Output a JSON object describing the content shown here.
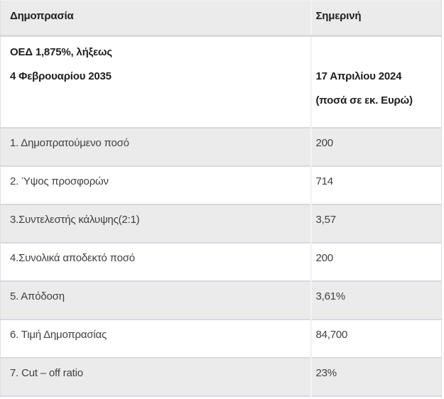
{
  "chart_data": {
    "type": "table",
    "title": "Greek bond auction results table",
    "columns": [
      "Δημοπρασία",
      "Σημερινή"
    ],
    "subheader": {
      "bond_line1": "ΟΕΔ 1,875%, λήξεως",
      "bond_line2": "4 Φεβρουαρίου 2035",
      "date": "17 Απριλίου 2024",
      "units": "(ποσά σε εκ. Ευρώ)"
    },
    "rows": [
      {
        "label": "1. Δημοπρατούμενο ποσό",
        "value": "200"
      },
      {
        "label": "2. Ύψος προσφορών",
        "value": "714"
      },
      {
        "label": "3.Συντελεστής κάλυψης(2:1)",
        "value": "3,57"
      },
      {
        "label": "4.Συνολικά αποδεκτό ποσό",
        "value": "200"
      },
      {
        "label": "5. Απόδοση",
        "value": "3,61%"
      },
      {
        "label": "6. Τιμή Δημοπρασίας",
        "value": "84,700"
      },
      {
        "label": "7. Cut – off ratio",
        "value": "23%"
      }
    ]
  },
  "colors": {
    "stripe_bg": "#ebebeb",
    "plain_bg": "#ffffff",
    "row_border": "#d8d9df",
    "column_border": "#f3f3f3",
    "side_border": "#e0e0e1",
    "header_text": "#1e1e1e",
    "body_text": "#404040"
  }
}
